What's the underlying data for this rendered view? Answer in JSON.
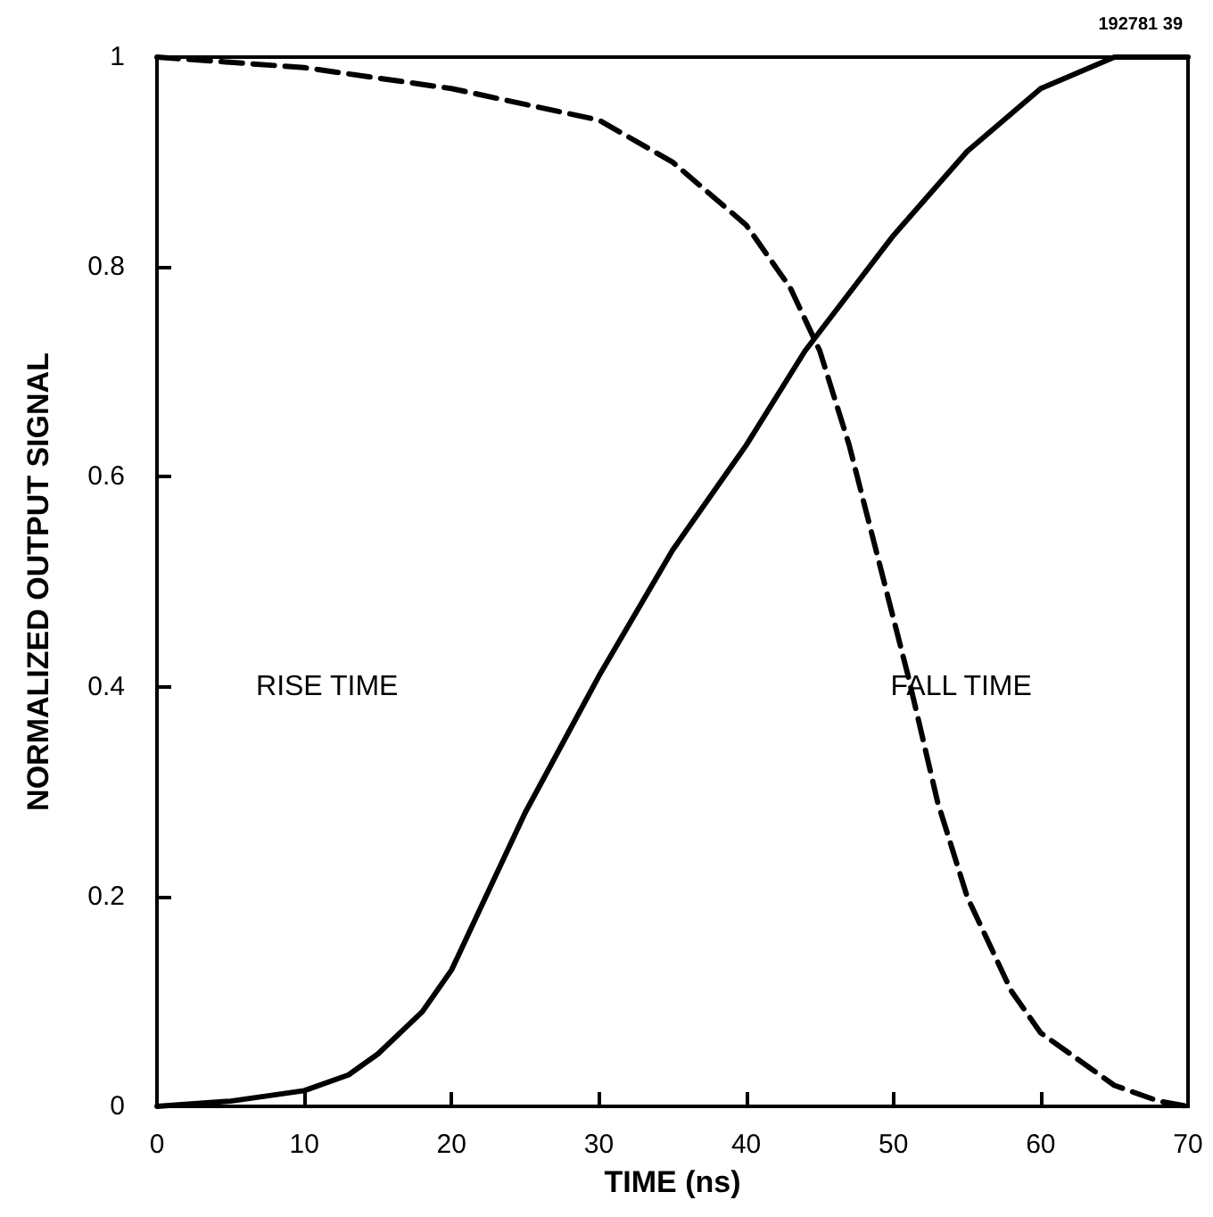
{
  "chart_data": {
    "type": "line",
    "xlabel": "TIME (ns)",
    "ylabel": "NORMALIZED OUTPUT SIGNAL",
    "xlim": [
      0,
      70
    ],
    "xticks": [
      0,
      10,
      20,
      30,
      40,
      50,
      60,
      70
    ],
    "ylim": [
      0,
      1
    ],
    "yticks": [
      0,
      {
        "value": 0.2,
        "label": "0.2"
      },
      {
        "value": 0.4,
        "label": "0.4"
      },
      {
        "value": 0.6,
        "label": "0.6"
      },
      {
        "value": 0.8,
        "label": "0.8"
      },
      1
    ],
    "grid": false,
    "marker": "none",
    "series": [
      {
        "color": "#000000",
        "line_style": "solid",
        "x": [
          0,
          5,
          10,
          13,
          15,
          18,
          20,
          22,
          25,
          30,
          35,
          40,
          44,
          50,
          55,
          60,
          65,
          70
        ],
        "values": [
          0,
          0.005,
          0.015,
          0.03,
          0.05,
          0.09,
          0.13,
          0.19,
          0.28,
          0.41,
          0.53,
          0.63,
          0.72,
          0.83,
          0.91,
          0.97,
          1.0,
          1.0
        ]
      },
      {
        "color": "#000000",
        "line_style": "dashed",
        "x": [
          0,
          10,
          20,
          30,
          35,
          40,
          43,
          45,
          47,
          49,
          51,
          53,
          55,
          58,
          60,
          65,
          68,
          70
        ],
        "values": [
          1,
          0.99,
          0.97,
          0.94,
          0.9,
          0.84,
          0.78,
          0.72,
          0.63,
          0.52,
          0.41,
          0.29,
          0.2,
          0.11,
          0.07,
          0.02,
          0.005,
          0
        ]
      }
    ],
    "annotations": [
      "RISE TIME",
      "FALL TIME",
      "192781 39"
    ]
  }
}
